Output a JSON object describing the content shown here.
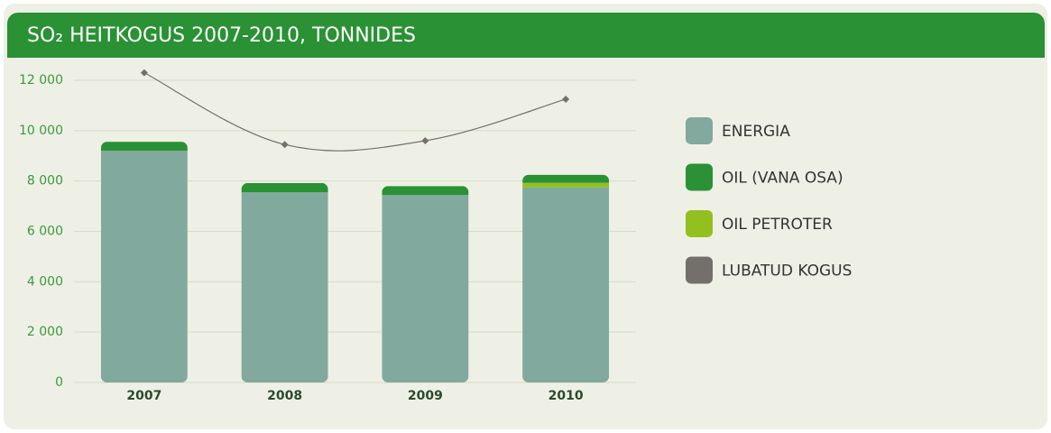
{
  "chart_data": {
    "type": "bar",
    "title": "SO₂ HEITKOGUS 2007-2010, TONNIDES",
    "categories": [
      "2007",
      "2008",
      "2009",
      "2010"
    ],
    "series": [
      {
        "name": "ENERGIA",
        "color": "#82a99d",
        "values": [
          9200,
          7550,
          7450,
          7750
        ]
      },
      {
        "name": "OIL (VANA OSA)",
        "color": "#2a9134",
        "values": [
          360,
          370,
          350,
          320
        ]
      },
      {
        "name": "OIL PETROTER",
        "color": "#93c01f",
        "values": [
          0,
          0,
          0,
          180
        ]
      },
      {
        "name": "LUBATUD KOGUS",
        "color": "#736f6b",
        "type": "line",
        "values": [
          12300,
          9450,
          9600,
          11250
        ]
      }
    ],
    "ylim": [
      0,
      12000
    ],
    "yticks": [
      0,
      {
        "value": 2000,
        "label": "2 000"
      },
      {
        "value": 4000,
        "label": "4 000"
      },
      {
        "value": 6000,
        "label": "6 000"
      },
      {
        "value": 8000,
        "label": "8 000"
      },
      {
        "value": 10000,
        "label": "10 000"
      },
      {
        "value": 12000,
        "label": "12 000"
      }
    ],
    "grid": true,
    "legend": "right"
  }
}
